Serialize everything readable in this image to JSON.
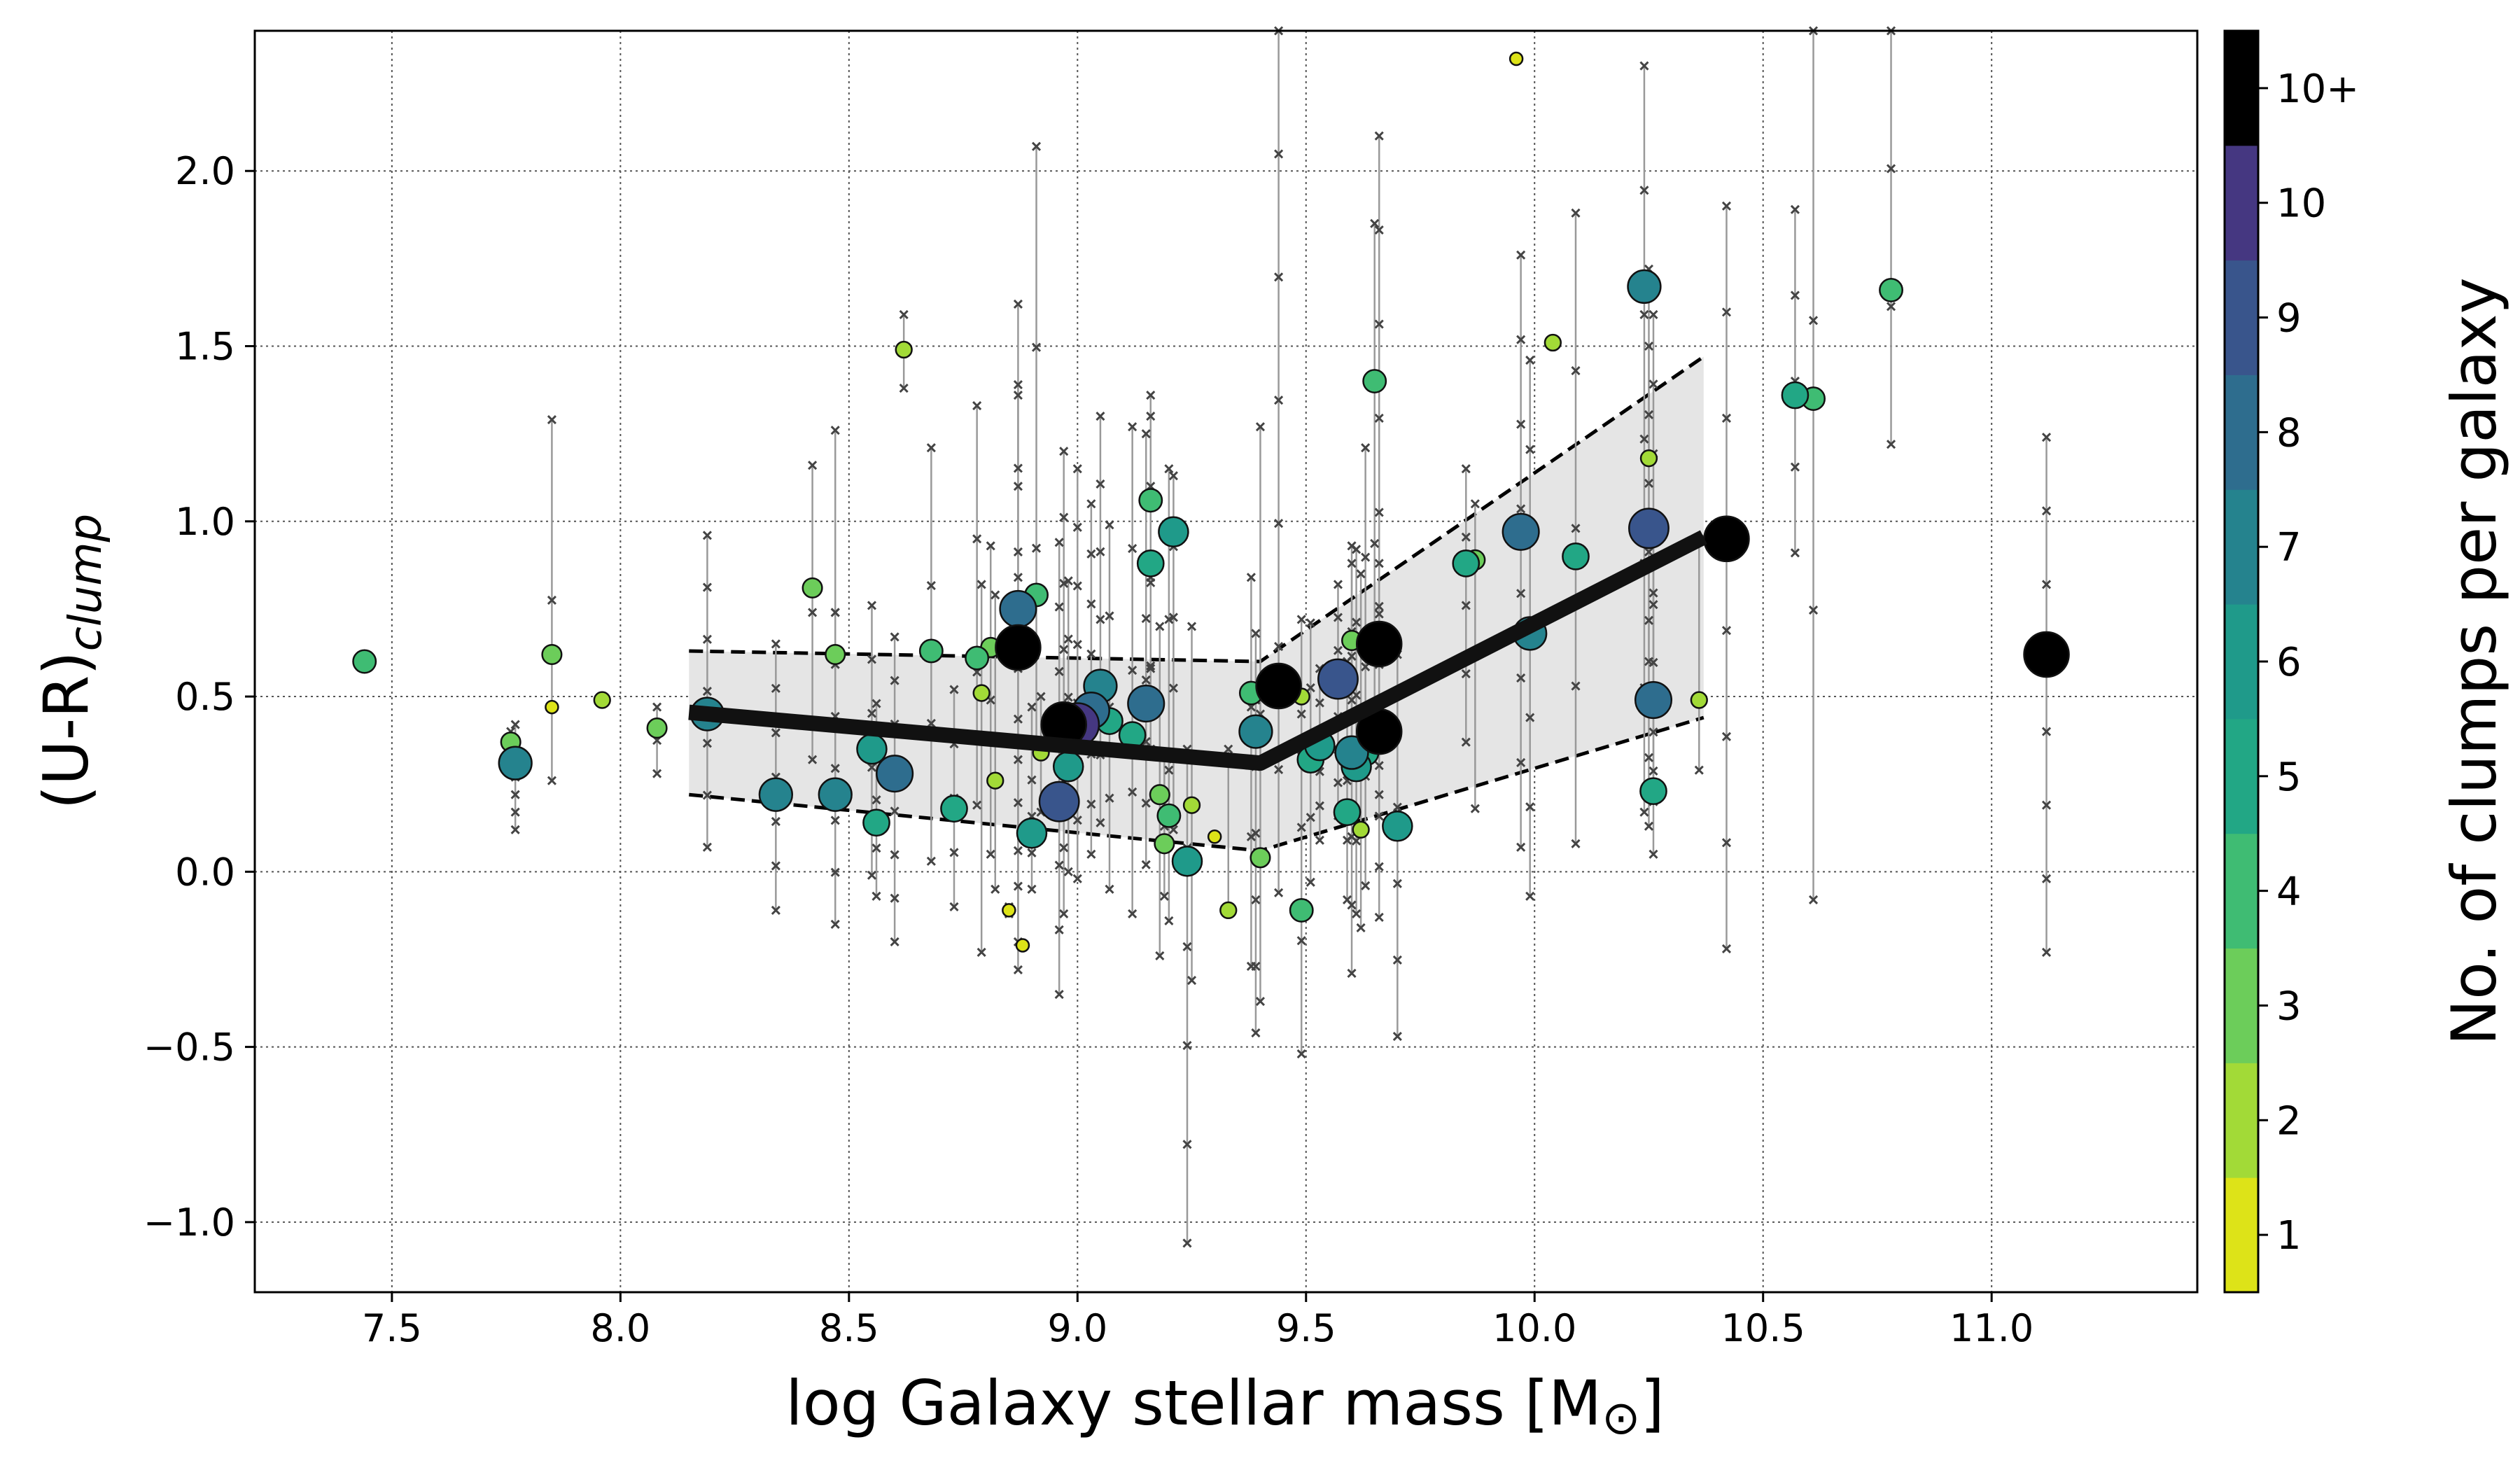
{
  "chart_data": {
    "type": "scatter",
    "xlabel": "log Galaxy stellar mass [M",
    "xlabel_sub": "⊙",
    "xlabel_end": "]",
    "ylabel": "(U-R)",
    "ylabel_sub": "clump",
    "xlim": [
      7.2,
      11.45
    ],
    "ylim": [
      -1.2,
      2.4
    ],
    "x_ticks": [
      7.5,
      8.0,
      8.5,
      9.0,
      9.5,
      10.0,
      10.5,
      11.0
    ],
    "x_tick_labels": [
      "7.5",
      "8.0",
      "8.5",
      "9.0",
      "9.5",
      "10.0",
      "10.5",
      "11.0"
    ],
    "y_ticks": [
      -1.0,
      -0.5,
      0.0,
      0.5,
      1.0,
      1.5,
      2.0
    ],
    "y_tick_labels": [
      "−1.0",
      "−0.5",
      "0.0",
      "0.5",
      "1.0",
      "1.5",
      "2.0"
    ],
    "grid": true,
    "colorbar": {
      "label": "No. of clumps per galaxy",
      "levels": [
        "1",
        "2",
        "3",
        "4",
        "5",
        "6",
        "7",
        "8",
        "9",
        "10",
        "10+"
      ],
      "colors": [
        "#dde318",
        "#a2da37",
        "#6ccd5a",
        "#3fbc73",
        "#22a785",
        "#1f9a8a",
        "#25838e",
        "#2e6d8e",
        "#39558c",
        "#453781",
        "#000000"
      ]
    },
    "median_line": {
      "x": [
        8.15,
        9.4,
        10.37
      ],
      "y": [
        0.455,
        0.31,
        0.955
      ]
    },
    "band_upper": {
      "x": [
        8.15,
        9.4,
        10.37
      ],
      "y": [
        0.63,
        0.6,
        1.47
      ]
    },
    "band_lower": {
      "x": [
        8.15,
        9.4,
        10.37
      ],
      "y": [
        0.22,
        0.06,
        0.44
      ]
    },
    "points": [
      {
        "x": 7.44,
        "y": 0.6,
        "n": 4,
        "lo": 0.59,
        "hi": 0.62
      },
      {
        "x": 7.77,
        "y": 0.31,
        "n": 7,
        "lo": 0.12,
        "hi": 0.42
      },
      {
        "x": 7.76,
        "y": 0.37,
        "n": 3,
        "lo": 0.33,
        "hi": 0.4
      },
      {
        "x": 7.85,
        "y": 0.62,
        "n": 3,
        "lo": 0.26,
        "hi": 1.29
      },
      {
        "x": 7.85,
        "y": 0.47,
        "n": 1,
        "lo": 0.47,
        "hi": 0.47
      },
      {
        "x": 7.96,
        "y": 0.49,
        "n": 2,
        "lo": 0.48,
        "hi": 0.5
      },
      {
        "x": 8.08,
        "y": 0.41,
        "n": 3,
        "lo": 0.28,
        "hi": 0.47
      },
      {
        "x": 8.19,
        "y": 0.45,
        "n": 7,
        "lo": 0.07,
        "hi": 0.96
      },
      {
        "x": 8.34,
        "y": 0.22,
        "n": 7,
        "lo": -0.11,
        "hi": 0.65
      },
      {
        "x": 8.42,
        "y": 0.81,
        "n": 3,
        "lo": 0.32,
        "hi": 1.16
      },
      {
        "x": 8.47,
        "y": 0.62,
        "n": 3,
        "lo": 0.22,
        "hi": 1.26
      },
      {
        "x": 8.47,
        "y": 0.22,
        "n": 7,
        "lo": -0.15,
        "hi": 0.74
      },
      {
        "x": 8.55,
        "y": 0.35,
        "n": 6,
        "lo": -0.01,
        "hi": 0.76
      },
      {
        "x": 8.56,
        "y": 0.14,
        "n": 5,
        "lo": -0.07,
        "hi": 0.48
      },
      {
        "x": 8.6,
        "y": 0.28,
        "n": 8,
        "lo": -0.2,
        "hi": 0.67
      },
      {
        "x": 8.62,
        "y": 1.49,
        "n": 2,
        "lo": 1.38,
        "hi": 1.59
      },
      {
        "x": 8.68,
        "y": 0.63,
        "n": 4,
        "lo": 0.03,
        "hi": 1.21
      },
      {
        "x": 8.73,
        "y": 0.18,
        "n": 5,
        "lo": -0.1,
        "hi": 0.52
      },
      {
        "x": 8.78,
        "y": 0.61,
        "n": 4,
        "lo": 0.19,
        "hi": 1.33
      },
      {
        "x": 8.79,
        "y": 0.51,
        "n": 2,
        "lo": -0.23,
        "hi": 0.82
      },
      {
        "x": 8.81,
        "y": 0.64,
        "n": 3,
        "lo": 0.05,
        "hi": 0.93
      },
      {
        "x": 8.82,
        "y": 0.26,
        "n": 2,
        "lo": -0.05,
        "hi": 0.79
      },
      {
        "x": 8.85,
        "y": -0.11,
        "n": 1,
        "lo": -0.12,
        "hi": -0.1
      },
      {
        "x": 8.87,
        "y": 0.64,
        "n": 11,
        "lo": -0.28,
        "hi": 1.39
      },
      {
        "x": 8.87,
        "y": 0.75,
        "n": 8,
        "lo": -0.2,
        "hi": 1.62
      },
      {
        "x": 8.88,
        "y": -0.21,
        "n": 1,
        "lo": -0.21,
        "hi": -0.21
      },
      {
        "x": 8.9,
        "y": 0.11,
        "n": 6,
        "lo": -0.05,
        "hi": 0.47
      },
      {
        "x": 8.91,
        "y": 0.79,
        "n": 4,
        "lo": 0.35,
        "hi": 2.07
      },
      {
        "x": 8.92,
        "y": 0.34,
        "n": 2,
        "lo": 0.17,
        "hi": 0.5
      },
      {
        "x": 8.96,
        "y": 0.2,
        "n": 9,
        "lo": -0.35,
        "hi": 0.94
      },
      {
        "x": 8.97,
        "y": 0.42,
        "n": 11,
        "lo": -0.12,
        "hi": 1.2
      },
      {
        "x": 8.98,
        "y": 0.3,
        "n": 6,
        "lo": 0.0,
        "hi": 0.83
      },
      {
        "x": 9.0,
        "y": 0.42,
        "n": 10,
        "lo": -0.02,
        "hi": 1.15
      },
      {
        "x": 9.03,
        "y": 0.46,
        "n": 8,
        "lo": 0.05,
        "hi": 1.05
      },
      {
        "x": 9.05,
        "y": 0.53,
        "n": 7,
        "lo": 0.14,
        "hi": 1.3
      },
      {
        "x": 9.07,
        "y": 0.43,
        "n": 5,
        "lo": -0.05,
        "hi": 0.99
      },
      {
        "x": 9.12,
        "y": 0.39,
        "n": 5,
        "lo": -0.12,
        "hi": 1.27
      },
      {
        "x": 9.15,
        "y": 0.48,
        "n": 8,
        "lo": 0.02,
        "hi": 1.25
      },
      {
        "x": 9.16,
        "y": 0.88,
        "n": 5,
        "lo": 0.35,
        "hi": 1.3
      },
      {
        "x": 9.16,
        "y": 1.06,
        "n": 4,
        "lo": 0.58,
        "hi": 1.36
      },
      {
        "x": 9.18,
        "y": 0.22,
        "n": 3,
        "lo": -0.24,
        "hi": 0.7
      },
      {
        "x": 9.19,
        "y": 0.08,
        "n": 3,
        "lo": -0.07,
        "hi": 0.33
      },
      {
        "x": 9.2,
        "y": 0.16,
        "n": 4,
        "lo": -0.14,
        "hi": 1.15
      },
      {
        "x": 9.21,
        "y": 0.97,
        "n": 6,
        "lo": 0.12,
        "hi": 1.13
      },
      {
        "x": 9.24,
        "y": 0.03,
        "n": 6,
        "lo": -1.06,
        "hi": 0.35
      },
      {
        "x": 9.25,
        "y": 0.19,
        "n": 2,
        "lo": -0.31,
        "hi": 0.7
      },
      {
        "x": 9.3,
        "y": 0.1,
        "n": 1,
        "lo": 0.1,
        "hi": 0.1
      },
      {
        "x": 9.33,
        "y": -0.11,
        "n": 2,
        "lo": -0.12,
        "hi": 0.35
      },
      {
        "x": 9.38,
        "y": 0.51,
        "n": 4,
        "lo": -0.27,
        "hi": 0.84
      },
      {
        "x": 9.39,
        "y": 0.4,
        "n": 7,
        "lo": -0.46,
        "hi": 0.68
      },
      {
        "x": 9.4,
        "y": 0.04,
        "n": 3,
        "lo": -0.37,
        "hi": 1.27
      },
      {
        "x": 9.44,
        "y": 0.53,
        "n": 11,
        "lo": -0.06,
        "hi": 2.4
      },
      {
        "x": 9.49,
        "y": -0.11,
        "n": 4,
        "lo": -0.52,
        "hi": 0.45
      },
      {
        "x": 9.49,
        "y": 0.5,
        "n": 2,
        "lo": 0.33,
        "hi": 0.72
      },
      {
        "x": 9.51,
        "y": 0.32,
        "n": 5,
        "lo": -0.03,
        "hi": 0.71
      },
      {
        "x": 9.53,
        "y": 0.36,
        "n": 6,
        "lo": 0.09,
        "hi": 0.58
      },
      {
        "x": 9.57,
        "y": 0.55,
        "n": 9,
        "lo": 0.16,
        "hi": 0.82
      },
      {
        "x": 9.59,
        "y": 0.17,
        "n": 5,
        "lo": -0.08,
        "hi": 0.6
      },
      {
        "x": 9.6,
        "y": 0.34,
        "n": 7,
        "lo": -0.29,
        "hi": 0.88
      },
      {
        "x": 9.6,
        "y": 0.66,
        "n": 3,
        "lo": 0.3,
        "hi": 0.93
      },
      {
        "x": 9.61,
        "y": 0.3,
        "n": 6,
        "lo": -0.12,
        "hi": 0.92
      },
      {
        "x": 9.62,
        "y": 0.12,
        "n": 2,
        "lo": -0.16,
        "hi": 0.85
      },
      {
        "x": 9.63,
        "y": 0.34,
        "n": 5,
        "lo": -0.04,
        "hi": 1.21
      },
      {
        "x": 9.65,
        "y": 1.4,
        "n": 4,
        "lo": 0.48,
        "hi": 1.85
      },
      {
        "x": 9.66,
        "y": 0.65,
        "n": 11,
        "lo": 0.22,
        "hi": 2.1
      },
      {
        "x": 9.66,
        "y": 0.4,
        "n": 11,
        "lo": -0.13,
        "hi": 0.88
      },
      {
        "x": 9.7,
        "y": 0.13,
        "n": 6,
        "lo": -0.47,
        "hi": 0.62
      },
      {
        "x": 9.85,
        "y": 0.88,
        "n": 5,
        "lo": 0.37,
        "hi": 1.15
      },
      {
        "x": 9.87,
        "y": 0.89,
        "n": 3,
        "lo": 0.18,
        "hi": 1.05
      },
      {
        "x": 9.96,
        "y": 2.32,
        "n": 1,
        "lo": 2.32,
        "hi": 2.32
      },
      {
        "x": 9.97,
        "y": 0.97,
        "n": 8,
        "lo": 0.07,
        "hi": 1.76
      },
      {
        "x": 9.99,
        "y": 0.68,
        "n": 7,
        "lo": -0.07,
        "hi": 1.46
      },
      {
        "x": 10.04,
        "y": 1.51,
        "n": 2,
        "lo": 1.5,
        "hi": 1.52
      },
      {
        "x": 10.09,
        "y": 0.9,
        "n": 5,
        "lo": 0.08,
        "hi": 1.88
      },
      {
        "x": 10.24,
        "y": 1.67,
        "n": 7,
        "lo": 0.17,
        "hi": 2.3
      },
      {
        "x": 10.25,
        "y": 1.18,
        "n": 2,
        "lo": 0.6,
        "hi": 1.72
      },
      {
        "x": 10.25,
        "y": 0.98,
        "n": 9,
        "lo": 0.13,
        "hi": 1.5
      },
      {
        "x": 10.26,
        "y": 0.49,
        "n": 8,
        "lo": 0.2,
        "hi": 1.59
      },
      {
        "x": 10.26,
        "y": 0.23,
        "n": 5,
        "lo": 0.05,
        "hi": 1.0
      },
      {
        "x": 10.36,
        "y": 0.49,
        "n": 2,
        "lo": 0.29,
        "hi": 0.95
      },
      {
        "x": 10.42,
        "y": 0.95,
        "n": 11,
        "lo": -0.22,
        "hi": 1.9
      },
      {
        "x": 10.57,
        "y": 1.36,
        "n": 5,
        "lo": 0.91,
        "hi": 1.89
      },
      {
        "x": 10.61,
        "y": 1.35,
        "n": 4,
        "lo": -0.08,
        "hi": 2.4
      },
      {
        "x": 10.78,
        "y": 1.66,
        "n": 4,
        "lo": 1.22,
        "hi": 2.4
      },
      {
        "x": 11.12,
        "y": 0.62,
        "n": 11,
        "lo": -0.23,
        "hi": 1.24
      }
    ]
  }
}
